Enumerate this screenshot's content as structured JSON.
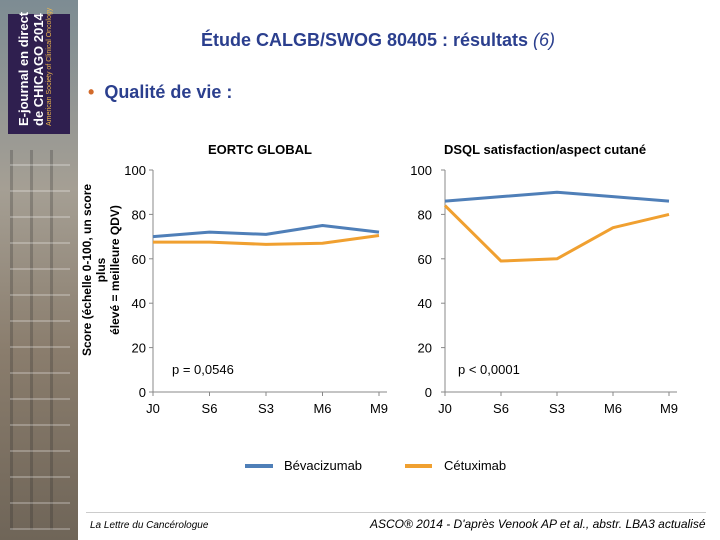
{
  "banner": {
    "line1": "E-journal en direct",
    "line2": "de CHICAGO 2014",
    "line3": "American Society of Clinical Oncology"
  },
  "header": {
    "title": "Étude CALGB/SWOG 80405 : résultats",
    "title_suffix": "(6)"
  },
  "bullet": {
    "dot": "•",
    "text": "Qualité de vie :"
  },
  "ylabel": {
    "line1": "Score (échelle 0-100, un score plus",
    "line2": "élevé = meilleure QDV)"
  },
  "colors": {
    "bevacizumab": "#4f7fb8",
    "cetuximab": "#f0a030"
  },
  "legend": {
    "bevacizumab": "Bévacizumab",
    "cetuximab": "Cétuximab"
  },
  "footer": {
    "left": "La Lettre du Cancérologue",
    "right": "ASCO® 2014 - D'après Venook AP et al., abstr. LBA3 actualisé"
  },
  "chart_data": [
    {
      "type": "line",
      "title": "EORTC GLOBAL",
      "categories": [
        "J0",
        "S6",
        "S3",
        "M6",
        "M9"
      ],
      "ylim": [
        0,
        100
      ],
      "yticks": [
        0,
        20,
        40,
        60,
        80,
        100
      ],
      "annotation": "p = 0,0546",
      "series": [
        {
          "name": "Bévacizumab",
          "values": [
            70,
            72,
            71,
            75,
            72
          ]
        },
        {
          "name": "Cétuximab",
          "values": [
            67.5,
            67.5,
            66.5,
            67,
            70.5
          ]
        }
      ]
    },
    {
      "type": "line",
      "title": "DSQL satisfaction/aspect cutané",
      "categories": [
        "J0",
        "S6",
        "S3",
        "M6",
        "M9"
      ],
      "ylim": [
        0,
        100
      ],
      "yticks": [
        0,
        20,
        40,
        60,
        80,
        100
      ],
      "annotation": "p < 0,0001",
      "series": [
        {
          "name": "Bévacizumab",
          "values": [
            86,
            88,
            90,
            88,
            86
          ]
        },
        {
          "name": "Cétuximab",
          "values": [
            84,
            59,
            60,
            74,
            80
          ]
        }
      ]
    }
  ]
}
